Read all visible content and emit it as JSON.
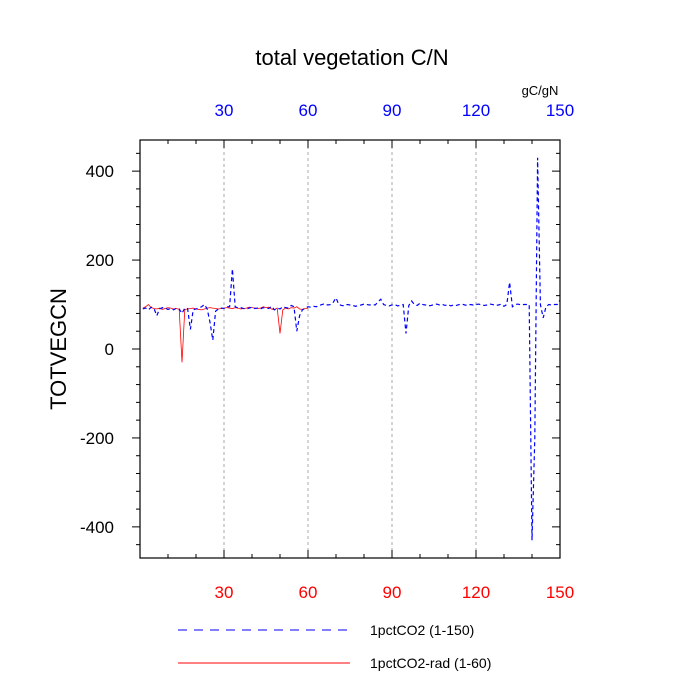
{
  "chart_data": {
    "type": "line",
    "title": "total vegetation C/N",
    "ylabel": "TOTVEGCN",
    "units": "gC/gN",
    "xlim": [
      0,
      150
    ],
    "ylim": [
      -470,
      470
    ],
    "bottom_axis": {
      "ticks": [
        30,
        60,
        90,
        120,
        150
      ],
      "color": "#ff0000"
    },
    "top_axis": {
      "ticks": [
        30,
        60,
        90,
        120,
        150
      ],
      "color": "#0000ff"
    },
    "y_ticks": [
      -400,
      -200,
      0,
      200,
      400
    ],
    "grid": {
      "vertical_dashed_at": [
        30,
        60,
        90,
        120
      ]
    },
    "series": [
      {
        "name": "1pctCO2 (1-150)",
        "color": "#0000ff",
        "style": "dashed",
        "x": [
          1,
          2,
          3,
          4,
          5,
          6,
          7,
          8,
          9,
          10,
          11,
          12,
          13,
          14,
          15,
          16,
          17,
          18,
          19,
          20,
          21,
          22,
          23,
          24,
          25,
          26,
          27,
          28,
          29,
          30,
          31,
          32,
          33,
          34,
          35,
          36,
          37,
          38,
          39,
          40,
          41,
          42,
          43,
          44,
          45,
          46,
          47,
          48,
          49,
          50,
          51,
          52,
          53,
          54,
          55,
          56,
          57,
          58,
          59,
          60,
          61,
          62,
          63,
          64,
          65,
          66,
          67,
          68,
          69,
          70,
          71,
          72,
          73,
          74,
          75,
          76,
          77,
          78,
          79,
          80,
          81,
          82,
          83,
          84,
          85,
          86,
          87,
          88,
          89,
          90,
          91,
          92,
          93,
          94,
          95,
          96,
          97,
          98,
          99,
          100,
          101,
          102,
          103,
          104,
          105,
          106,
          107,
          108,
          109,
          110,
          111,
          112,
          113,
          114,
          115,
          116,
          117,
          118,
          119,
          120,
          121,
          122,
          123,
          124,
          125,
          126,
          127,
          128,
          129,
          130,
          131,
          132,
          133,
          134,
          135,
          136,
          137,
          138,
          139,
          140,
          141,
          142,
          143,
          144,
          145,
          146,
          147,
          148,
          149,
          150
        ],
        "y": [
          90,
          92,
          88,
          94,
          91,
          75,
          90,
          93,
          92,
          89,
          91,
          88,
          92,
          90,
          80,
          92,
          91,
          44,
          88,
          90,
          92,
          95,
          100,
          90,
          60,
          20,
          85,
          90,
          92,
          91,
          95,
          95,
          180,
          95,
          92,
          93,
          91,
          90,
          92,
          94,
          91,
          92,
          90,
          93,
          92,
          91,
          96,
          88,
          92,
          90,
          95,
          93,
          92,
          98,
          95,
          40,
          75,
          88,
          92,
          95,
          94,
          96,
          95,
          98,
          100,
          102,
          99,
          100,
          105,
          115,
          100,
          98,
          97,
          100,
          99,
          98,
          96,
          98,
          99,
          101,
          100,
          99,
          100,
          99,
          106,
          112,
          100,
          98,
          97,
          99,
          100,
          97,
          98,
          100,
          35,
          98,
          108,
          100,
          98,
          103,
          100,
          99,
          97,
          98,
          100,
          101,
          99,
          100,
          98,
          100,
          97,
          99,
          98,
          100,
          101,
          99,
          98,
          100,
          99,
          100,
          101,
          99,
          98,
          99,
          101,
          100,
          98,
          99,
          101,
          96,
          100,
          150,
          95,
          100,
          101,
          99,
          100,
          100,
          100,
          -430,
          -200,
          430,
          100,
          70,
          95,
          100,
          99,
          100,
          100,
          110
        ]
      },
      {
        "name": "1pctCO2-rad (1-60)",
        "color": "#ff0000",
        "style": "solid",
        "x": [
          1,
          2,
          3,
          4,
          5,
          6,
          7,
          8,
          9,
          10,
          11,
          12,
          13,
          14,
          15,
          16,
          17,
          18,
          19,
          20,
          21,
          22,
          23,
          24,
          25,
          26,
          27,
          28,
          29,
          30,
          31,
          32,
          33,
          34,
          35,
          36,
          37,
          38,
          39,
          40,
          41,
          42,
          43,
          44,
          45,
          46,
          47,
          48,
          49,
          50,
          51,
          52,
          53,
          54,
          55,
          56,
          57,
          58,
          59,
          60
        ],
        "y": [
          92,
          95,
          100,
          93,
          91,
          90,
          92,
          89,
          91,
          93,
          92,
          90,
          91,
          89,
          -30,
          89,
          90,
          91,
          92,
          90,
          89,
          88,
          90,
          92,
          93,
          92,
          91,
          90,
          91,
          92,
          93,
          92,
          91,
          93,
          92,
          90,
          91,
          92,
          94,
          93,
          92,
          91,
          92,
          95,
          93,
          94,
          90,
          88,
          92,
          35,
          88,
          92,
          90,
          93,
          92,
          95,
          90,
          89,
          91,
          92
        ]
      }
    ]
  }
}
